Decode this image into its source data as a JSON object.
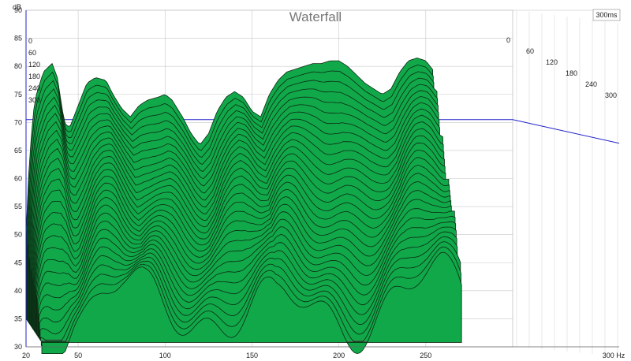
{
  "chart_data": {
    "type": "area",
    "title": "Waterfall",
    "ylabel": "dB",
    "xlabel": "Hz",
    "x_ticks": [
      "20",
      "50",
      "100",
      "150",
      "200",
      "250",
      "300 Hz"
    ],
    "y_ticks": [
      "30",
      "35",
      "40",
      "45",
      "50",
      "55",
      "60",
      "65",
      "70",
      "75",
      "80",
      "85",
      "90"
    ],
    "xlim": [
      20,
      300
    ],
    "ylim": [
      30,
      90
    ],
    "time_axis": {
      "end_label": "300ms",
      "front_ticks": [
        "0",
        "60",
        "120",
        "180",
        "240",
        "300"
      ],
      "back_ticks": [
        "0",
        "60",
        "120",
        "180",
        "240",
        "300"
      ]
    },
    "reference_level_db": 70.5,
    "colors": {
      "fill": "#11a84a",
      "line": "#0b2a12",
      "grid": "#c8c8c8",
      "reference": "#2222cc"
    },
    "front_slice": {
      "time_ms": 0,
      "x": [
        20,
        22,
        25,
        30,
        35,
        38,
        42,
        45,
        50,
        55,
        60,
        66,
        70,
        75,
        80,
        85,
        90,
        96,
        100,
        104,
        110,
        115,
        120,
        125,
        130,
        135,
        140,
        145,
        150,
        155,
        160,
        165,
        170,
        175,
        180,
        185,
        190,
        195,
        200,
        205,
        210,
        215,
        220,
        225,
        230,
        235,
        240,
        245,
        250,
        255
      ],
      "db": [
        50,
        64,
        74,
        79,
        80.5,
        78,
        70,
        69,
        73,
        77,
        78,
        77.5,
        75,
        72.5,
        71,
        73,
        74,
        74.5,
        75,
        74,
        71,
        68,
        66,
        68,
        72,
        74.5,
        75.5,
        74.5,
        72,
        71,
        75,
        77.5,
        79,
        79.5,
        80,
        80.5,
        80.5,
        81,
        81,
        80,
        78.5,
        77,
        76,
        75,
        76,
        79,
        81,
        81.5,
        81,
        79
      ]
    }
  }
}
